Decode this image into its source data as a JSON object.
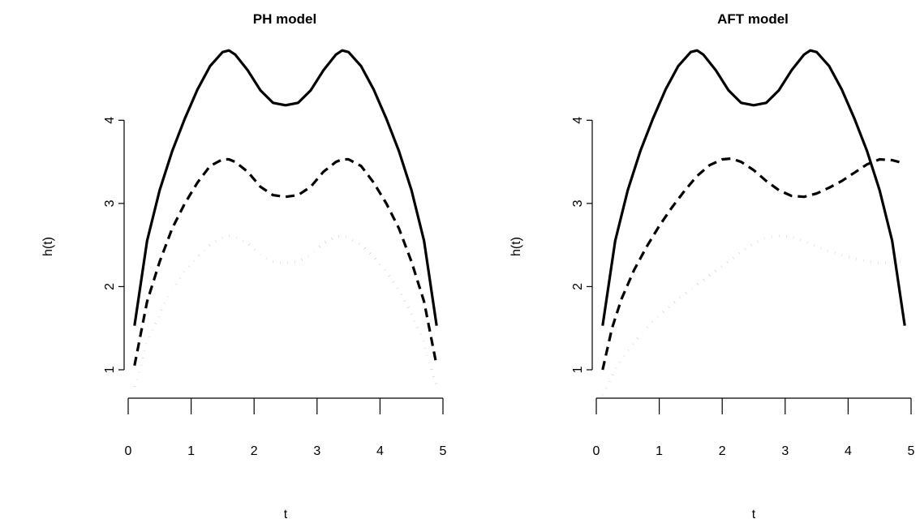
{
  "chart_data": [
    {
      "type": "line",
      "title": "PH model",
      "xlabel": "t",
      "ylabel": "h(t)",
      "xlim": [
        0,
        5
      ],
      "ylim": [
        0.6,
        4.9
      ],
      "xticks": [
        "0",
        "1",
        "2",
        "3",
        "4",
        "5"
      ],
      "yticks": [
        "1",
        "2",
        "3",
        "4"
      ],
      "grid": false,
      "legend": "none",
      "series": [
        {
          "style": "solid",
          "x": [
            0.1,
            0.3,
            0.5,
            0.7,
            0.9,
            1.1,
            1.3,
            1.5,
            1.6,
            1.7,
            1.9,
            2.1,
            2.3,
            2.5,
            2.7,
            2.9,
            3.1,
            3.3,
            3.4,
            3.5,
            3.7,
            3.9,
            4.1,
            4.3,
            4.5,
            4.7,
            4.9
          ],
          "y": [
            1.53,
            2.55,
            3.16,
            3.63,
            4.02,
            4.37,
            4.65,
            4.82,
            4.84,
            4.79,
            4.6,
            4.36,
            4.21,
            4.18,
            4.21,
            4.36,
            4.6,
            4.79,
            4.84,
            4.82,
            4.65,
            4.37,
            4.02,
            3.63,
            3.16,
            2.55,
            1.53
          ]
        },
        {
          "style": "dashed",
          "x": [
            0.1,
            0.3,
            0.5,
            0.7,
            0.9,
            1.1,
            1.3,
            1.5,
            1.6,
            1.7,
            1.9,
            2.1,
            2.3,
            2.5,
            2.7,
            2.9,
            3.1,
            3.3,
            3.4,
            3.5,
            3.7,
            3.9,
            4.1,
            4.3,
            4.5,
            4.7,
            4.9
          ],
          "y": [
            1.05,
            1.82,
            2.3,
            2.7,
            3.0,
            3.25,
            3.45,
            3.53,
            3.53,
            3.5,
            3.38,
            3.2,
            3.1,
            3.08,
            3.1,
            3.2,
            3.38,
            3.5,
            3.53,
            3.53,
            3.45,
            3.25,
            3.0,
            2.7,
            2.3,
            1.82,
            1.05
          ]
        },
        {
          "style": "dotted",
          "x": [
            0.1,
            0.3,
            0.5,
            0.7,
            0.9,
            1.1,
            1.3,
            1.5,
            1.6,
            1.7,
            1.9,
            2.1,
            2.3,
            2.5,
            2.7,
            2.9,
            3.1,
            3.3,
            3.4,
            3.5,
            3.7,
            3.9,
            4.1,
            4.3,
            4.5,
            4.7,
            4.9
          ],
          "y": [
            0.8,
            1.32,
            1.68,
            1.96,
            2.18,
            2.36,
            2.5,
            2.59,
            2.61,
            2.6,
            2.52,
            2.38,
            2.3,
            2.28,
            2.3,
            2.38,
            2.52,
            2.6,
            2.61,
            2.59,
            2.5,
            2.36,
            2.18,
            1.96,
            1.68,
            1.32,
            0.8
          ]
        }
      ]
    },
    {
      "type": "line",
      "title": "AFT model",
      "xlabel": "t",
      "ylabel": "h(t)",
      "xlim": [
        0,
        5
      ],
      "ylim": [
        0.6,
        4.9
      ],
      "xticks": [
        "0",
        "1",
        "2",
        "3",
        "4",
        "5"
      ],
      "yticks": [
        "1",
        "2",
        "3",
        "4"
      ],
      "grid": false,
      "legend": "none",
      "series": [
        {
          "style": "solid",
          "x": [
            0.1,
            0.3,
            0.5,
            0.7,
            0.9,
            1.1,
            1.3,
            1.5,
            1.6,
            1.7,
            1.9,
            2.1,
            2.3,
            2.5,
            2.7,
            2.9,
            3.1,
            3.3,
            3.4,
            3.5,
            3.7,
            3.9,
            4.1,
            4.3,
            4.5,
            4.7,
            4.9
          ],
          "y": [
            1.53,
            2.55,
            3.16,
            3.63,
            4.02,
            4.37,
            4.65,
            4.82,
            4.84,
            4.79,
            4.6,
            4.36,
            4.21,
            4.18,
            4.21,
            4.36,
            4.6,
            4.79,
            4.84,
            4.82,
            4.65,
            4.37,
            4.02,
            3.63,
            3.16,
            2.55,
            1.53
          ]
        },
        {
          "style": "dashed",
          "x": [
            0.1,
            0.25,
            0.4,
            0.6,
            0.8,
            1.0,
            1.2,
            1.4,
            1.6,
            1.8,
            2.0,
            2.15,
            2.3,
            2.5,
            2.7,
            2.9,
            3.1,
            3.3,
            3.5,
            3.7,
            3.9,
            4.1,
            4.3,
            4.5,
            4.7,
            4.9
          ],
          "y": [
            1.0,
            1.5,
            1.85,
            2.2,
            2.48,
            2.73,
            2.95,
            3.15,
            3.33,
            3.46,
            3.53,
            3.54,
            3.5,
            3.4,
            3.27,
            3.16,
            3.09,
            3.08,
            3.12,
            3.19,
            3.27,
            3.37,
            3.47,
            3.53,
            3.52,
            3.48
          ]
        },
        {
          "style": "dotted",
          "x": [
            0.1,
            0.3,
            0.5,
            0.7,
            0.9,
            1.1,
            1.3,
            1.5,
            1.7,
            1.9,
            2.1,
            2.3,
            2.5,
            2.7,
            2.9,
            3.1,
            3.3,
            3.5,
            3.7,
            3.9,
            4.1,
            4.3,
            4.5,
            4.7,
            4.9
          ],
          "y": [
            0.7,
            1.0,
            1.22,
            1.42,
            1.58,
            1.72,
            1.85,
            1.97,
            2.08,
            2.19,
            2.3,
            2.42,
            2.52,
            2.59,
            2.61,
            2.6,
            2.55,
            2.48,
            2.42,
            2.38,
            2.34,
            2.3,
            2.28,
            2.29,
            2.31
          ]
        }
      ]
    }
  ]
}
